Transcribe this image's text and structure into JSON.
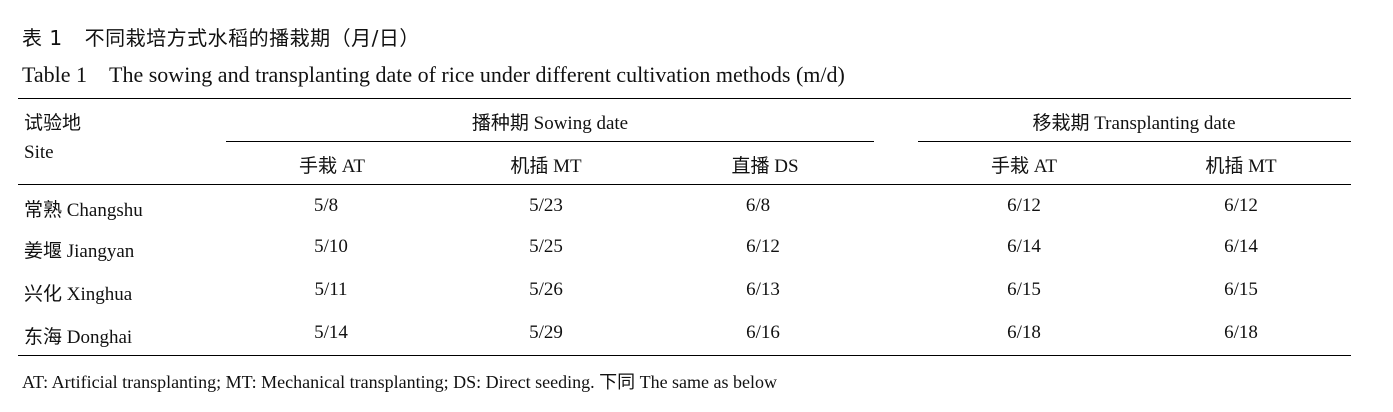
{
  "caption": {
    "zh_number": "表 1",
    "zh_title": "不同栽培方式水稻的播栽期（月/日）",
    "en_number": "Table 1",
    "en_title": "The sowing and transplanting date of rice under different cultivation methods (m/d)"
  },
  "header": {
    "site_zh": "试验地",
    "site_en": "Site",
    "sowing_group": "播种期  Sowing date",
    "transplanting_group": "移栽期 Transplanting date",
    "columns": [
      "手栽 AT",
      "机插 MT",
      "直播 DS",
      "手栽 AT",
      "机插 MT"
    ]
  },
  "rows": [
    {
      "site": "常熟 Changshu",
      "values": [
        "5/8",
        "5/23",
        "6/8",
        "6/12",
        "6/12"
      ]
    },
    {
      "site": "姜堰 Jiangyan",
      "values": [
        "5/10",
        "5/25",
        "6/12",
        "6/14",
        "6/14"
      ]
    },
    {
      "site": "兴化 Xinghua",
      "values": [
        "5/11",
        "5/26",
        "6/13",
        "6/15",
        "6/15"
      ]
    },
    {
      "site": "东海 Donghai",
      "values": [
        "5/14",
        "5/29",
        "6/16",
        "6/18",
        "6/18"
      ]
    }
  ],
  "footnote": "AT: Artificial transplanting; MT: Mechanical transplanting; DS: Direct seeding.  下同  The same as below"
}
